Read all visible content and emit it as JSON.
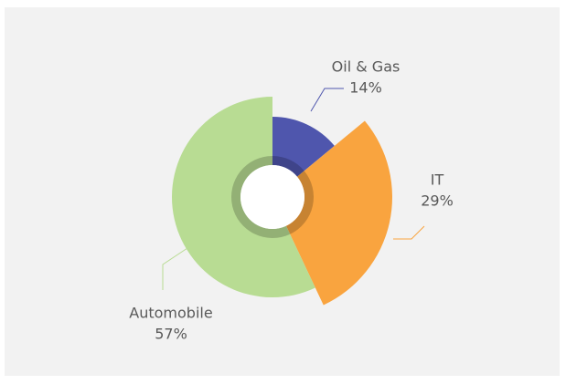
{
  "chart_data": {
    "type": "pie",
    "categories": [
      "Oil & Gas",
      "IT",
      "Automobile"
    ],
    "values": [
      14,
      29,
      57
    ],
    "value_labels": [
      "14%",
      "29%",
      "57%"
    ],
    "colors": [
      "#4f56ad",
      "#f9a43f",
      "#b8dc93"
    ]
  }
}
